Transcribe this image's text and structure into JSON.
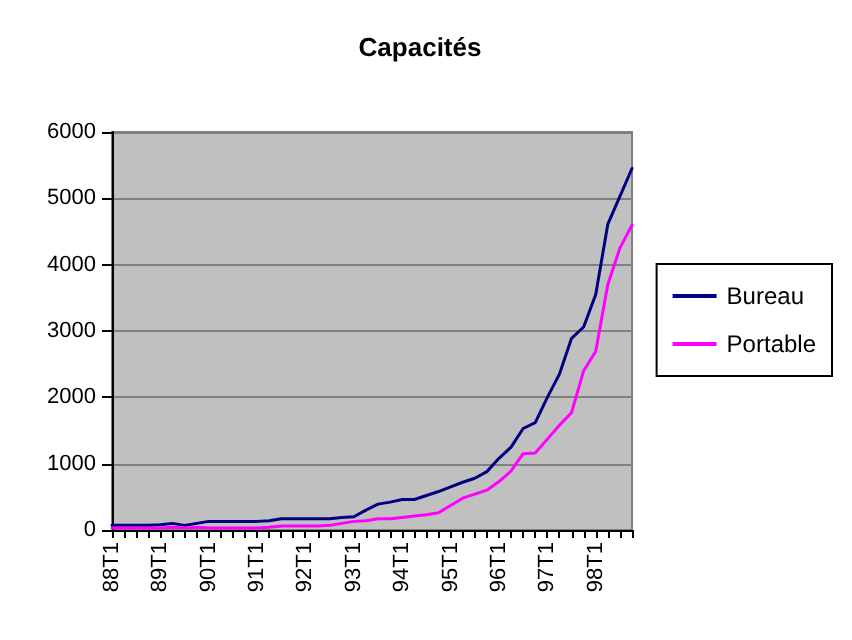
{
  "chart_data": {
    "type": "line",
    "title": "Capacités",
    "categories": [
      "88T1",
      null,
      null,
      null,
      "89T1",
      null,
      null,
      null,
      "90T1",
      null,
      null,
      null,
      "91T1",
      null,
      null,
      null,
      "92T1",
      null,
      null,
      null,
      "93T1",
      null,
      null,
      null,
      "94T1",
      null,
      null,
      null,
      "95T1",
      null,
      null,
      null,
      "96T1",
      null,
      null,
      null,
      "97T1",
      null,
      null,
      null,
      "98T1",
      null,
      null,
      null
    ],
    "series": [
      {
        "name": "Bureau",
        "color": "#000080",
        "values": [
          70,
          70,
          70,
          70,
          80,
          100,
          70,
          100,
          130,
          130,
          130,
          130,
          130,
          140,
          170,
          170,
          170,
          170,
          170,
          190,
          200,
          300,
          390,
          420,
          460,
          460,
          520,
          580,
          650,
          720,
          780,
          880,
          1080,
          1250,
          1530,
          1620,
          2000,
          2350,
          2890,
          3060,
          3550,
          4610,
          5030,
          5450
        ]
      },
      {
        "name": "Portable",
        "color": "#ff00ff",
        "values": [
          30,
          30,
          30,
          30,
          30,
          40,
          30,
          40,
          30,
          30,
          30,
          30,
          30,
          40,
          60,
          60,
          60,
          60,
          70,
          100,
          130,
          140,
          170,
          170,
          190,
          210,
          230,
          260,
          370,
          480,
          540,
          600,
          730,
          890,
          1150,
          1160,
          1370,
          1580,
          1770,
          2400,
          2690,
          3700,
          4250,
          4600
        ]
      }
    ],
    "ylim": [
      0,
      6000
    ],
    "yticks": [
      0,
      1000,
      2000,
      3000,
      4000,
      5000,
      6000
    ],
    "grid": "y",
    "legend": "right",
    "marker": "none",
    "line_style": "solid"
  }
}
